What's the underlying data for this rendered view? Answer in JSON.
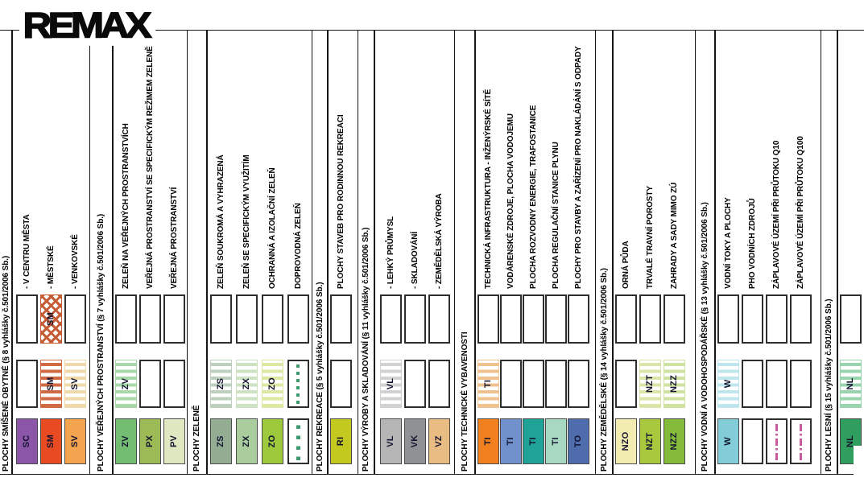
{
  "logo": {
    "text": "REMAX"
  },
  "colors": {
    "line": "#161616",
    "code_text": "#141430",
    "dots_green": "#3D9970",
    "flood_magenta": "#C85A9E"
  },
  "legend": {
    "groups": [
      {
        "header": "PLOCHY SMÍŠENÉ OBYTNÉ (§ 8 vyhlášky č.501/2006 Sb.)",
        "entries": [
          {
            "code": "SC",
            "label": "- V CENTRU MĚSTA",
            "cells": [
              {
                "variant": "solid",
                "color": "#8C56A8",
                "code": "SC"
              },
              {
                "variant": "white"
              },
              {
                "variant": "white"
              }
            ]
          },
          {
            "code": "SM",
            "label": "- MĚSTSKÉ",
            "cells": [
              {
                "variant": "solid",
                "color": "#E84A22",
                "code": "SM"
              },
              {
                "variant": "striped",
                "color": "#CF6A45",
                "code": "SM"
              },
              {
                "variant": "cross",
                "color": "#C65C36",
                "code": "SM"
              }
            ]
          },
          {
            "code": "SV",
            "label": "- VENKOVSKÉ",
            "cells": [
              {
                "variant": "solid",
                "color": "#F2A44E",
                "code": "SV"
              },
              {
                "variant": "striped",
                "color": "#EFD9A8",
                "code": "SV"
              },
              {
                "variant": "white"
              }
            ]
          }
        ]
      },
      {
        "header": "PLOCHY VEŘEJNÝCH PROSTRANSTVÍ (§ 7 vyhlášky č.501/2006 Sb.)",
        "entries": [
          {
            "code": "ZV",
            "label": "ZELEŇ NA VEŘEJNÝCH PROSTRANSTVÍCH",
            "cells": [
              {
                "variant": "solid",
                "color": "#72BD72",
                "code": "ZV"
              },
              {
                "variant": "striped",
                "color": "#A8D8A8",
                "code": "ZV"
              },
              {
                "variant": "white"
              }
            ]
          },
          {
            "code": "PX",
            "label": "VEŘEJNÁ PROSTRANSTVÍ SE SPECIFICKÝM REŽIMEM ZELENĚ",
            "cells": [
              {
                "variant": "solid",
                "color": "#9CBA55",
                "code": "PX"
              },
              {
                "variant": "white"
              },
              {
                "variant": "white"
              }
            ]
          },
          {
            "code": "PV",
            "label": "VEŘEJNÁ PROSTRANSTVÍ",
            "cells": [
              {
                "variant": "solid",
                "color": "#DFE8C0",
                "code": "PV"
              },
              {
                "variant": "white"
              },
              {
                "variant": "white"
              }
            ]
          }
        ]
      },
      {
        "header": "PLOCHY ZELENĚ",
        "entries": [
          {
            "code": "ZS",
            "label": "ZELEŇ SOUKROMÁ A VYHRAZENÁ",
            "cells": [
              {
                "variant": "solid",
                "color": "#92AD92",
                "code": "ZS"
              },
              {
                "variant": "striped",
                "color": "#BDD0BD",
                "code": "ZS"
              },
              {
                "variant": "white"
              }
            ]
          },
          {
            "code": "ZX",
            "label": "ZELEŇ SE SPECIFICKÝM VYUŽITÍM",
            "cells": [
              {
                "variant": "solid",
                "color": "#A9CD9C",
                "code": "ZX"
              },
              {
                "variant": "striped",
                "color": "#CCE2C3",
                "code": "ZX"
              },
              {
                "variant": "white"
              }
            ]
          },
          {
            "code": "ZO",
            "label": "OCHRANNÁ A IZOLAČNÍ ZELEŇ",
            "cells": [
              {
                "variant": "solid",
                "color": "#9DC93C",
                "code": "ZO"
              },
              {
                "variant": "striped",
                "color": "#DDE9A2",
                "code": "ZO"
              },
              {
                "variant": "white"
              }
            ]
          },
          {
            "code": "",
            "label": "DOPROVODNÁ ZELEŇ",
            "cells": [
              {
                "variant": "dots-sparse"
              },
              {
                "variant": "dots-dense"
              },
              {
                "variant": "white"
              }
            ]
          }
        ]
      },
      {
        "header": "PLOCHY REKREACE (§ 5 vyhlášky č.501/2006 Sb.)",
        "entries": [
          {
            "code": "RI",
            "label": "PLOCHY STAVEB PRO RODINNOU REKREACI",
            "cells": [
              {
                "variant": "solid",
                "color": "#C3C91E",
                "code": "RI"
              },
              {
                "variant": "white"
              },
              {
                "variant": "white"
              }
            ]
          }
        ]
      },
      {
        "header": "PLOCHY VÝROBY A SKLADOVÁNÍ (§ 11 vyhlášky č.501/2006 Sb.)",
        "entries": [
          {
            "code": "VL",
            "label": "- LEHKÝ PRŮMYSL",
            "cells": [
              {
                "variant": "solid",
                "color": "#B5B5B5",
                "code": "VL"
              },
              {
                "variant": "striped",
                "color": "#D2D2D2",
                "code": "VL"
              },
              {
                "variant": "white"
              }
            ]
          },
          {
            "code": "VK",
            "label": "- SKLADOVÁNÍ",
            "cells": [
              {
                "variant": "solid",
                "color": "#8F9294",
                "code": "VK"
              },
              {
                "variant": "white"
              },
              {
                "variant": "white"
              }
            ]
          },
          {
            "code": "VZ",
            "label": "- ZEMĚDĚLSKÁ VÝROBA",
            "cells": [
              {
                "variant": "solid",
                "color": "#E9BC84",
                "code": "VZ"
              },
              {
                "variant": "white"
              },
              {
                "variant": "white"
              }
            ]
          }
        ]
      },
      {
        "header": "PLOCHY TECHNICKÉ VYBAVENOSTI",
        "entries": [
          {
            "code": "TI",
            "label": "TECHNICKÁ INFRASTRUKTURA - INŽENÝRSKÉ SÍTĚ",
            "cells": [
              {
                "variant": "solid",
                "color": "#F3801F",
                "code": "TI"
              },
              {
                "variant": "striped",
                "color": "#F0C290",
                "code": "TI"
              },
              {
                "variant": "white"
              }
            ]
          },
          {
            "code": "TI",
            "label": "VODÁRENSKÉ ZDROJE, PLOCHA VODOJEMU",
            "cells": [
              {
                "variant": "solid",
                "color": "#7191CC",
                "code": "TI"
              },
              {
                "variant": "white"
              },
              {
                "variant": "white"
              }
            ]
          },
          {
            "code": "TI",
            "label": "PLOCHA ROZVODNY ENERGIE, TRAFOSTANICE",
            "cells": [
              {
                "variant": "solid",
                "color": "#1FA396",
                "code": "TI"
              },
              {
                "variant": "white"
              },
              {
                "variant": "white"
              }
            ]
          },
          {
            "code": "TI",
            "label": "PLOCHA REGULAČNÍ STANICE PLYNU",
            "cells": [
              {
                "variant": "solid",
                "color": "#A7D8C2",
                "code": "TI"
              },
              {
                "variant": "white"
              },
              {
                "variant": "white"
              }
            ]
          },
          {
            "code": "TO",
            "label": "PLOCHY PRO STAVBY A ZAŘÍZENÍ PRO NAKLÁDÁNÍ S ODPADY",
            "cells": [
              {
                "variant": "solid",
                "color": "#4F6CAD",
                "code": "TO"
              },
              {
                "variant": "white"
              },
              {
                "variant": "white"
              }
            ]
          }
        ]
      },
      {
        "header": "PLOCHY ZEMĚDĚLSKÉ (§ 14 vyhlášky č.501/2006 Sb.)",
        "entries": [
          {
            "code": "NZO",
            "label": "ORNÁ PŮDA",
            "cells": [
              {
                "variant": "solid",
                "color": "#F3ECB0",
                "code": "NZO"
              },
              {
                "variant": "white"
              },
              {
                "variant": "white"
              }
            ]
          },
          {
            "code": "NZT",
            "label": "TRVALÉ TRAVNÍ POROSTY",
            "cells": [
              {
                "variant": "solid",
                "color": "#A8C93E",
                "code": "NZT"
              },
              {
                "variant": "striped",
                "color": "#D9E6A8",
                "code": "NZT"
              },
              {
                "variant": "white"
              }
            ]
          },
          {
            "code": "NZZ",
            "label": "ZAHRADY A SADY MIMO ZÚ",
            "cells": [
              {
                "variant": "solid",
                "color": "#84BB3A",
                "code": "NZZ"
              },
              {
                "variant": "striped",
                "color": "#CFE2A0",
                "code": "NZZ"
              },
              {
                "variant": "white"
              }
            ]
          }
        ]
      },
      {
        "header": "PLOCHY VODNÍ A VODOHOSPODÁŘSKÉ (§ 13 vyhlášky č.501/2006 Sb.)",
        "entries": [
          {
            "code": "W",
            "label": "VODNÍ TOKY A PLOCHY",
            "cells": [
              {
                "variant": "solid",
                "color": "#82CDD8",
                "code": "W"
              },
              {
                "variant": "striped",
                "color": "#BFE6EC",
                "code": "W"
              },
              {
                "variant": "white"
              }
            ]
          },
          {
            "code": "",
            "label": "PHO VODNÍCH ZDROJŮ",
            "cells": [
              {
                "variant": "white"
              },
              {
                "variant": "white"
              },
              {
                "variant": "white"
              }
            ]
          },
          {
            "code": "",
            "label": "ZÁPLAVOVÉ ÚZEMÍ PŘI PRŮTOKU Q10",
            "cells": [
              {
                "variant": "dashdot"
              },
              {
                "variant": "white"
              },
              {
                "variant": "white"
              }
            ]
          },
          {
            "code": "",
            "label": "ZÁPLAVOVÉ ÚZEMÍ PŘI PRŮTOKU Q100",
            "cells": [
              {
                "variant": "dashdot"
              },
              {
                "variant": "white"
              },
              {
                "variant": "white"
              }
            ]
          }
        ]
      },
      {
        "header": "PLOCHY LESNÍ (§ 15 vyhlášky č.501/2006 Sb.)",
        "entries": [
          {
            "code": "NL",
            "label": "",
            "cells": [
              {
                "variant": "solid",
                "color": "#2F9E5E",
                "code": "NL"
              },
              {
                "variant": "striped",
                "color": "#9AD4AE",
                "code": "NL"
              },
              {
                "variant": "white"
              }
            ]
          }
        ]
      }
    ]
  }
}
